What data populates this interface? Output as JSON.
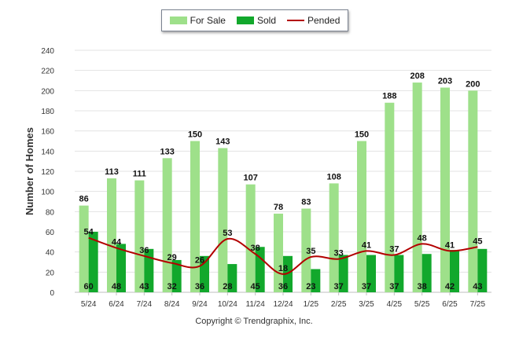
{
  "chart_data": {
    "type": "bar",
    "categories": [
      "5/24",
      "6/24",
      "7/24",
      "8/24",
      "9/24",
      "10/24",
      "11/24",
      "12/24",
      "1/25",
      "2/25",
      "3/25",
      "4/25",
      "5/25",
      "6/25",
      "7/25"
    ],
    "series": [
      {
        "name": "For Sale",
        "type": "bar",
        "color": "#9ee08a",
        "values": [
          86,
          113,
          111,
          133,
          150,
          143,
          107,
          78,
          83,
          108,
          150,
          188,
          208,
          203,
          200
        ]
      },
      {
        "name": "Sold",
        "type": "bar",
        "color": "#12a82c",
        "values": [
          60,
          48,
          43,
          32,
          36,
          28,
          45,
          36,
          23,
          37,
          37,
          37,
          38,
          42,
          43
        ]
      },
      {
        "name": "Pended",
        "type": "line",
        "color": "#b30000",
        "values": [
          54,
          44,
          36,
          29,
          26,
          53,
          38,
          18,
          35,
          33,
          41,
          37,
          48,
          41,
          45
        ]
      }
    ],
    "ylabel": "Number of Homes",
    "xlabel": "",
    "ylim": [
      0,
      240
    ],
    "yticks": [
      0,
      20,
      40,
      60,
      80,
      100,
      120,
      140,
      160,
      180,
      200,
      220,
      240
    ],
    "grid": true,
    "legend": "top-center"
  },
  "footer": {
    "copyright": "Copyright © Trendgraphix, Inc."
  }
}
